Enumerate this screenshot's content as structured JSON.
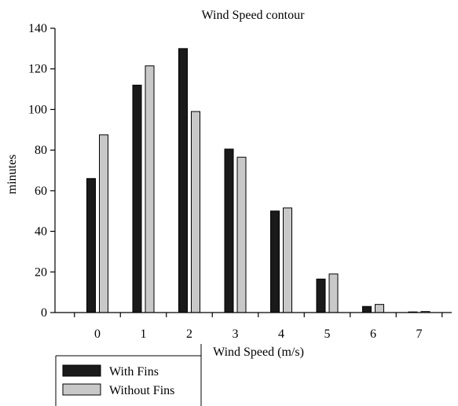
{
  "chart_data": {
    "type": "bar",
    "title": "Wind Speed contour",
    "xlabel": "Wind Speed (m/s)",
    "ylabel": "minutes",
    "categories": [
      "0",
      "1",
      "2",
      "3",
      "4",
      "5",
      "6",
      "7"
    ],
    "series": [
      {
        "name": "With Fins",
        "color": "#1a1a1a",
        "values": [
          66,
          112,
          130,
          80.5,
          50,
          16.5,
          3,
          0
        ]
      },
      {
        "name": "Without Fins",
        "color": "#c8c8c8",
        "values": [
          87.5,
          121.5,
          99,
          76.5,
          51.5,
          19,
          4,
          0.5
        ]
      }
    ],
    "ylim": [
      0,
      140
    ],
    "yticks": [
      "0",
      "20",
      "40",
      "60",
      "80",
      "100",
      "120",
      "140"
    ],
    "grid": false,
    "legend_position": "bottom-left"
  }
}
